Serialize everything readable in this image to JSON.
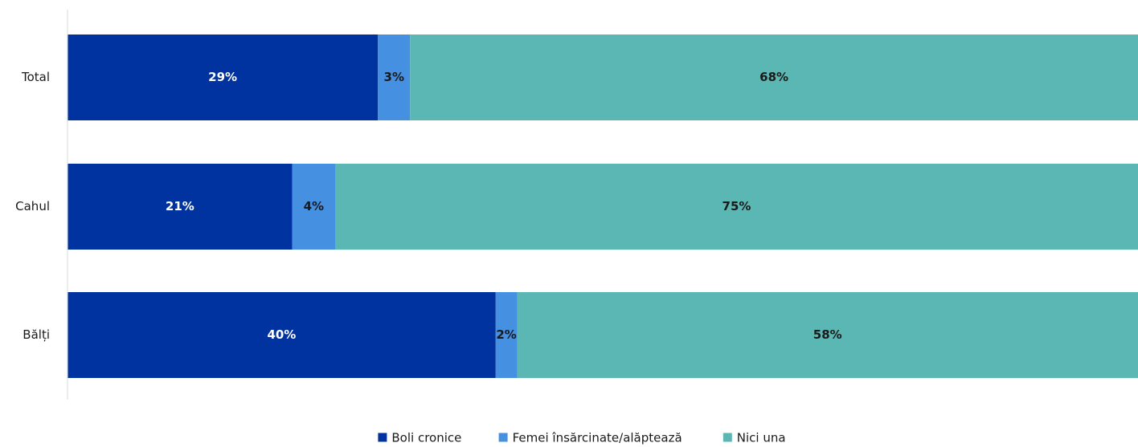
{
  "chart_data": {
    "type": "bar",
    "orientation": "horizontal",
    "stacked": "percent",
    "categories": [
      "Total",
      "Cahul",
      "Bălți"
    ],
    "series": [
      {
        "name": "Boli cronice",
        "values": [
          29,
          21,
          40
        ],
        "labels": [
          "29%",
          "21%",
          "40%"
        ],
        "color": "#0033a0",
        "label_color": "#ffffff"
      },
      {
        "name": "Femei însărcinate/alăptează",
        "values": [
          3,
          4,
          2
        ],
        "labels": [
          "3%",
          "4%",
          "2%"
        ],
        "color": "#4690e2",
        "label_color": "#1a1a1a"
      },
      {
        "name": "Nici una",
        "values": [
          68,
          75,
          58
        ],
        "labels": [
          "68%",
          "75%",
          "58%"
        ],
        "color": "#5bb7b3",
        "label_color": "#1a1a1a"
      }
    ],
    "xlim": [
      0,
      100
    ],
    "grid": false,
    "legend_position": "bottom-center"
  }
}
